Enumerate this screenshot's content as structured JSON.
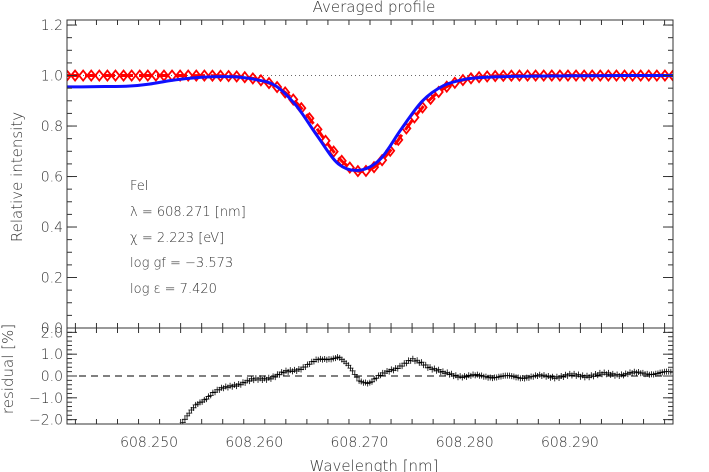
{
  "chart_data": [
    {
      "type": "line",
      "panel": "main",
      "title": "Averaged profile",
      "ylabel": "Relative intensity",
      "xlim": [
        608.2422,
        608.2998
      ],
      "ylim": [
        0.0,
        1.22
      ],
      "yticks": [
        0.0,
        0.2,
        0.4,
        0.6,
        0.8,
        1.0,
        1.2
      ],
      "ytick_labels": [
        "0.0",
        "0.2",
        "0.4",
        "0.6",
        "0.8",
        "1.0",
        "1.2"
      ],
      "reference_line": {
        "y": 1.0,
        "style": "dotted"
      },
      "series": [
        {
          "color": "#1010ff",
          "style": "solid",
          "x": [
            608.2422,
            608.245,
            608.248,
            608.25,
            608.252,
            608.254,
            608.256,
            608.258,
            608.26,
            608.262,
            608.264,
            608.266,
            608.268,
            608.27,
            608.272,
            608.274,
            608.276,
            608.278,
            608.28,
            608.282,
            608.285,
            608.29,
            608.295,
            608.2998
          ],
          "y": [
            0.955,
            0.956,
            0.958,
            0.966,
            0.98,
            0.99,
            0.995,
            0.995,
            0.985,
            0.96,
            0.88,
            0.76,
            0.65,
            0.625,
            0.67,
            0.79,
            0.9,
            0.96,
            0.985,
            0.993,
            0.997,
            0.999,
            1.0,
            1.0
          ]
        },
        {
          "color": "#ff0000",
          "style": "dashed-with-diamonds",
          "marker": "diamond",
          "gaussian_model": {
            "continuum": 1.0,
            "depth": 0.38,
            "center": 608.2702,
            "sigma": 0.0039
          }
        }
      ],
      "annotations": [
        "FeI",
        "λ = 608.271 [nm]",
        "χ =  2.223 [eV]",
        "log gf = −3.573",
        "log ε =  7.420"
      ]
    },
    {
      "type": "scatter",
      "panel": "residual",
      "ylabel": "residual [%]",
      "xlabel": "Wavelength [nm]",
      "xlim": [
        608.2422,
        608.2998
      ],
      "ylim": [
        -2.2,
        2.2
      ],
      "yticks": [
        -2.0,
        -1.0,
        0.0,
        1.0,
        2.0
      ],
      "ytick_labels": [
        "−2.0",
        "−1.0",
        "0.0",
        "1.0",
        "2.0"
      ],
      "xticks": [
        608.25,
        608.26,
        608.27,
        608.28,
        608.29
      ],
      "xtick_labels": [
        "608.250",
        "608.260",
        "608.270",
        "608.280",
        "608.290"
      ],
      "reference_line": {
        "y": 0.0,
        "style": "dashed"
      },
      "marker": "plus",
      "color": "#000000",
      "x": [
        608.253,
        608.2545,
        608.256,
        608.258,
        608.26,
        608.262,
        608.264,
        608.266,
        608.268,
        608.269,
        608.27,
        608.271,
        608.273,
        608.275,
        608.276,
        608.278,
        608.28,
        608.285,
        608.29,
        608.295,
        608.2998
      ],
      "y": [
        -2.3,
        -1.3,
        -0.8,
        -0.4,
        -0.2,
        0.0,
        0.3,
        0.7,
        0.9,
        0.4,
        -0.2,
        -0.3,
        0.3,
        0.7,
        0.6,
        0.1,
        0.0,
        -0.05,
        0.0,
        0.1,
        0.15
      ]
    }
  ]
}
